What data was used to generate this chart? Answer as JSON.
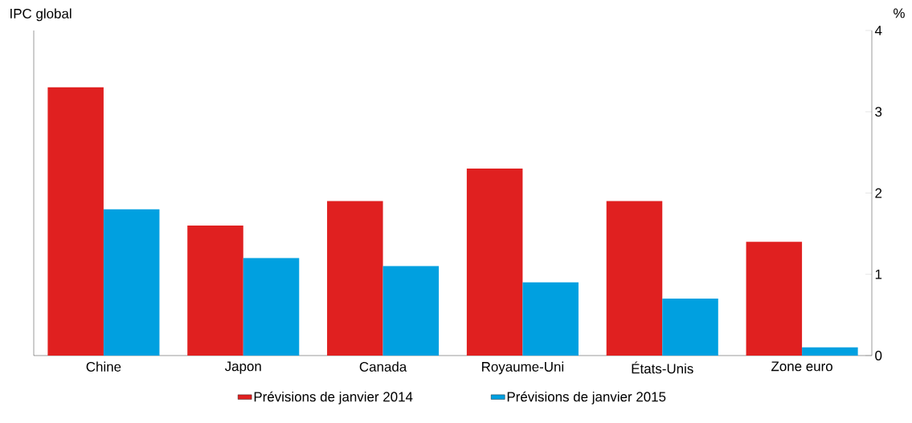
{
  "chart_data": {
    "type": "bar",
    "title": "IPC global",
    "ylabel": "%",
    "categories": [
      "Chine",
      "Japon",
      "Canada",
      "Royaume-Uni",
      "États-Unis",
      "Zone euro"
    ],
    "series": [
      {
        "name": "Prévisions de janvier 2014",
        "color": "#e02020",
        "values": [
          3.3,
          1.6,
          1.9,
          2.3,
          1.9,
          1.4
        ]
      },
      {
        "name": "Prévisions de janvier 2015",
        "color": "#00a0e0",
        "values": [
          1.8,
          1.2,
          1.1,
          0.9,
          0.7,
          0.1
        ]
      }
    ],
    "ylim": [
      0,
      4
    ],
    "yticks": [
      0,
      1,
      2,
      3,
      4
    ],
    "grid": false,
    "legend": "bottom"
  }
}
